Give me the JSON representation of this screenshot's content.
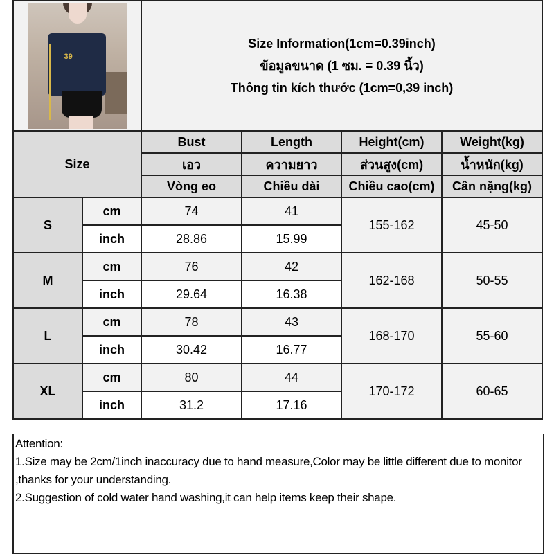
{
  "header": {
    "title_en": "Size Information(1cm=0.39inch)",
    "title_th": "ข้อมูลขนาด (1 ซม. = 0.39 นิ้ว)",
    "title_vi": "Thông tin kích thước (1cm=0,39 inch)"
  },
  "product_image": {
    "alt": "model wearing navy off-shoulder zip cardigan with yellow stripes and black skirt",
    "print_number": "39"
  },
  "size_label": "Size",
  "columns": [
    {
      "en": "Bust",
      "th": "เอว",
      "vi": "Vòng eo"
    },
    {
      "en": "Length",
      "th": "ความยาว",
      "vi": "Chiều dài"
    },
    {
      "en": "Height(cm)",
      "th": "ส่วนสูง(cm)",
      "vi": "Chiều cao(cm)"
    },
    {
      "en": "Weight(kg)",
      "th": "น้ำหนัก(kg)",
      "vi": "Cân nặng(kg)"
    }
  ],
  "units": {
    "cm": "cm",
    "inch": "inch"
  },
  "rows": [
    {
      "size": "S",
      "cm": {
        "bust": "74",
        "length": "41"
      },
      "inch": {
        "bust": "28.86",
        "length": "15.99"
      },
      "height": "155-162",
      "weight": "45-50"
    },
    {
      "size": "M",
      "cm": {
        "bust": "76",
        "length": "42"
      },
      "inch": {
        "bust": "29.64",
        "length": "16.38"
      },
      "height": "162-168",
      "weight": "50-55"
    },
    {
      "size": "L",
      "cm": {
        "bust": "78",
        "length": "43"
      },
      "inch": {
        "bust": "30.42",
        "length": "16.77"
      },
      "height": "168-170",
      "weight": "55-60"
    },
    {
      "size": "XL",
      "cm": {
        "bust": "80",
        "length": "44"
      },
      "inch": {
        "bust": "31.2",
        "length": "17.16"
      },
      "height": "170-172",
      "weight": "60-65"
    }
  ],
  "attention": {
    "title": "Attention:",
    "line1": "1.Size may be 2cm/1inch inaccuracy due to hand measure,Color may be little different due to monitor ,thanks for your understanding.",
    "line2": "2.Suggestion of cold water hand washing,it can help items keep their shape."
  },
  "colors": {
    "header_gray": "#dcdcdc",
    "light_gray": "#f2f2f2",
    "border": "#222222"
  }
}
